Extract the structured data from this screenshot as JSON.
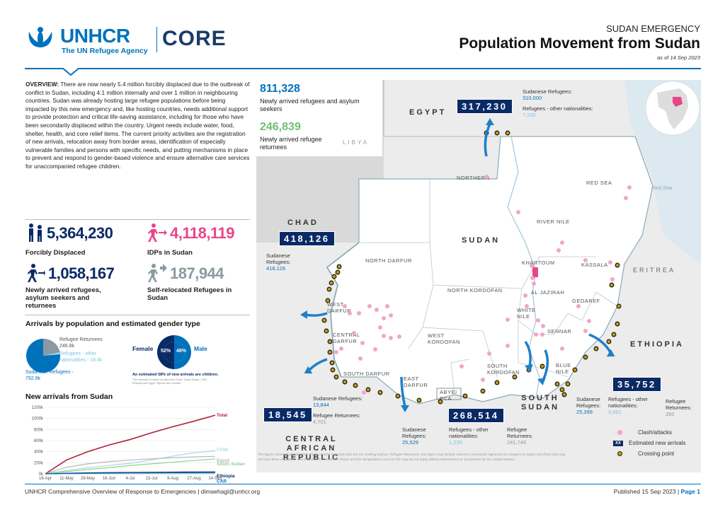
{
  "header": {
    "logo_text": "UNHCR",
    "logo_subtitle": "The UN Refugee Agency",
    "core_text": "CORE",
    "emergency": "SUDAN EMERGENCY",
    "title": "Population Movement from Sudan",
    "date": "as of 14 Sep 2023"
  },
  "overview": {
    "heading": "OVERVIEW:",
    "body": "There are now nearly 5.4 million forcibly displaced due to the outbreak of conflict in Sudan, including 4.1 million internally and over 1 million in neighbouring countries. Sudan was already hosting large refugee populations before being impacted by this new emergency and, like hosting countries, needs additional support to provide protection and critical life-saving assistance, including for those who have been secondarily displaced within the country. Urgent needs include water, food, shelter, health, and core relief items. The current priority activities are the registration of new arrivals, relocation away from border areas, identification of especially vulnerable families and persons with specific needs, and putting mechanisms in place to prevent and respond to gender-based violence and ensure alternative care services for unaccompanied refugee children."
  },
  "stats": [
    {
      "value": "5,364,230",
      "label": "Forcibly Displaced",
      "color": "#0a2a66",
      "icon": "displaced-people-icon"
    },
    {
      "value": "4,118,119",
      "label": "IDPs in Sudan",
      "color": "#e8458b",
      "icon": "idp-running-icon"
    },
    {
      "value": "1,058,167",
      "label": "Newly arrived refugees, asylum seekers and returnees",
      "color": "#0a2a66",
      "icon": "refugee-running-icon"
    },
    {
      "value": "187,944",
      "label": "Self-relocated Refugees in Sudan",
      "color": "#8a9aa0",
      "icon": "self-relocated-icon"
    }
  ],
  "gender": {
    "heading": "Arrivals by population and estimated gender type",
    "pie_labels": {
      "returnees": "Refugee Returnees",
      "returnees_value": "246.8k",
      "other": "Refugees - other nationalities - 18.4k",
      "sudanese": "Sudanese Refugees - 792.9k"
    },
    "female_label": "Female",
    "male_label": "Male",
    "female_pct": "52%",
    "male_pct": "48%",
    "note": "An estimated 58% of new arrivals are children.",
    "note2": "This estimate is based on data from Chad, South Sudan, CAR, Ethiopia and Egypt. Figures are rounded."
  },
  "chart_data": {
    "type": "line",
    "title": "New arrivals from Sudan",
    "x": [
      "16-Apr",
      "11-May",
      "29-May",
      "16-Jun",
      "4-Jul",
      "22-Jul",
      "9-Aug",
      "27-Aug",
      "14-Sep"
    ],
    "yticks": [
      "0k",
      "200k",
      "400k",
      "600k",
      "800k",
      "1000k",
      "1200k"
    ],
    "ylim": [
      0,
      1200
    ],
    "series": [
      {
        "name": "Total",
        "color": "#b0203a",
        "values": [
          0,
          250,
          400,
          520,
          620,
          740,
          850,
          950,
          1058
        ]
      },
      {
        "name": "Chad",
        "color": "#a7d8ec",
        "values": [
          0,
          60,
          110,
          150,
          190,
          250,
          320,
          380,
          418
        ]
      },
      {
        "name": "Egypt",
        "color": "#b8b8b8",
        "values": [
          0,
          120,
          180,
          220,
          250,
          270,
          290,
          305,
          317
        ]
      },
      {
        "name": "South Sudan",
        "color": "#8fd18a",
        "values": [
          0,
          40,
          80,
          110,
          150,
          180,
          210,
          240,
          269
        ]
      },
      {
        "name": "Ethiopia",
        "color": "#0a2a66",
        "values": [
          0,
          10,
          18,
          22,
          25,
          28,
          31,
          34,
          36
        ]
      },
      {
        "name": "CAR",
        "color": "#0072bc",
        "values": [
          0,
          5,
          10,
          13,
          15,
          16,
          17,
          18,
          19
        ]
      }
    ]
  },
  "map": {
    "top_box": {
      "newly_num": "811,328",
      "newly_label": "Newly arrived refugees and asylum seekers",
      "returnee_num": "246,839",
      "returnee_label": "Newly arrived refugee returnees"
    },
    "countries": {
      "egypt": "EGYPT",
      "libya": "LIBYA",
      "chad": "CHAD",
      "sudan": "SUDAN",
      "eritrea": "ERITREA",
      "ethiopia": "ETHIOPIA",
      "south_sudan": "SOUTH SUDAN",
      "car": "CENTRAL AFRICAN REPUBLIC",
      "red_sea_water": "Red Sea"
    },
    "regions": [
      "NORTHERN",
      "RED SEA",
      "RIVER NILE",
      "NORTH DARFUR",
      "KHARTOUM",
      "KASSALA",
      "NORTH KORDOFAN",
      "AL JAZIRAH",
      "GEDAREF",
      "WEST DARFUR",
      "WHITE NILE",
      "SENNAR",
      "CENTRAL DARFUR",
      "WEST KORDOFAN",
      "SOUTH KORDOFAN",
      "BLUE NILE",
      "SOUTH DARFUR",
      "EAST DARFUR",
      "ABYEI PCA"
    ],
    "egypt": {
      "total": "317,230",
      "sud_label": "Sudanese Refugees:",
      "sud": "310,000",
      "other_label": "Refugees - other nationalities:",
      "other": "7,230"
    },
    "chad": {
      "total": "418,126",
      "sud_label": "Sudanese Refugees:",
      "sud": "418,126"
    },
    "car": {
      "total": "18,545",
      "sud_label": "Sudanese Refugees:",
      "sud": "13,844",
      "ret_label": "Refugee Returnees:",
      "ret": "4,701"
    },
    "ssudan": {
      "total": "268,514",
      "sud_label": "Sudanese Refugees:",
      "sud": "25,529",
      "other_label": "Refugees - other nationalities:",
      "other": "1,239",
      "ret_label": "Refugee Returnees:",
      "ret": "241,746"
    },
    "ethiopia": {
      "total": "35,752",
      "sud_label": "Sudanese Refugees:",
      "sud": "25,399",
      "other_label": "Refugees - other nationalities:",
      "other": "9,961",
      "ret_label": "Refugee Returnees:",
      "ret": "392"
    },
    "legend": {
      "clashes": "Clash/attacks",
      "estimated": "Estimated new arrivals",
      "crossing": "Crossing point",
      "xx": "XX"
    },
    "disclaimer": "The figures denoted include three Third Country Nationals who are not seeking asylum. Refugee Returnees: this figure may include returnees previously registered as refugees in Sudan and those that may not have been registered. The boundaries and names shown and the designations used on this map do not imply official endorsement or acceptance by the United Nations."
  },
  "footer": {
    "left": "UNHCR Comprehensive Overview of Response to Emergencies | dimaehagl@unhcr.org",
    "right_pub": "Published 15 Sep 2023 |",
    "right_page": "Page 1"
  }
}
